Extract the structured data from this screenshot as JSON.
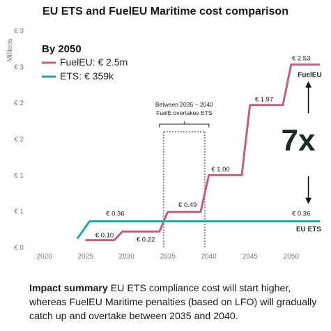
{
  "chart_data": {
    "type": "line",
    "title": "EU ETS and FuelEU Maritime cost comparison",
    "ylabel": "Millions",
    "ylim": [
      0,
      3
    ],
    "xlim": [
      2018,
      2054
    ],
    "x_ticks": [
      2020,
      2025,
      2030,
      2035,
      2040,
      2045,
      2050
    ],
    "y_ticks": [
      {
        "value": 0.0,
        "label": "€ 0"
      },
      {
        "value": 0.5,
        "label": "€ 1"
      },
      {
        "value": 1.0,
        "label": "€ 1"
      },
      {
        "value": 1.5,
        "label": "€ 2"
      },
      {
        "value": 2.0,
        "label": "€ 2"
      },
      {
        "value": 2.5,
        "label": "€ 3"
      },
      {
        "value": 3.0,
        "label": "€ 3"
      }
    ],
    "series": [
      {
        "name": "FuelEU",
        "color": "#c2607a",
        "x": [
          2025,
          2028.5,
          2029.5,
          2034,
          2035,
          2039,
          2040,
          2044,
          2045,
          2049,
          2050,
          2053.5
        ],
        "y": [
          0.1,
          0.1,
          0.22,
          0.22,
          0.49,
          0.49,
          1.0,
          1.0,
          1.97,
          1.97,
          2.53,
          2.53
        ]
      },
      {
        "name": "ETS",
        "color": "#1aab9b",
        "x": [
          2024,
          2025.5,
          2053.5
        ],
        "y": [
          0.12,
          0.36,
          0.36
        ]
      }
    ],
    "data_labels": [
      {
        "text": "€ 0.10",
        "x": 2026.2,
        "y": 0.14
      },
      {
        "text": "€ 0.22",
        "x": 2031.2,
        "y": 0.08
      },
      {
        "text": "€ 0.36",
        "x": 2027.5,
        "y": 0.44
      },
      {
        "text": "€ 0.49",
        "x": 2036.3,
        "y": 0.56
      },
      {
        "text": "€ 1.00",
        "x": 2040.3,
        "y": 1.05
      },
      {
        "text": "€ 1.97",
        "x": 2045.6,
        "y": 2.02
      },
      {
        "text": "€ 2.53",
        "x": 2050.1,
        "y": 2.59
      },
      {
        "text": "€ 0.36",
        "x": 2050.1,
        "y": 0.44
      }
    ],
    "series_end_labels": [
      {
        "text": "FuelEU",
        "x": 2050.8,
        "y": 2.36
      },
      {
        "text": "EU ETS",
        "x": 2050.6,
        "y": 0.22
      }
    ],
    "legend": {
      "placement": "top-left",
      "heading": "By 2050",
      "entries": [
        {
          "label": "FuelEU: € 2.5m",
          "color": "#c2607a"
        },
        {
          "label": "ETS: € 359k",
          "color": "#1aab9b"
        }
      ]
    },
    "annotations": {
      "period_box": {
        "x_start": 2034.5,
        "x_end": 2039.5,
        "y_top": 1.6
      },
      "period_text": [
        "Between 2035 ~ 2040",
        "FuelE overtakes ETS"
      ],
      "ratio_text": "7x",
      "ratio_arrow": {
        "x": 2052.1,
        "y_top": 2.3,
        "y_bottom": 0.6
      }
    },
    "grid": false
  },
  "summary": {
    "bold": "Impact summary",
    "text": " EU ETS compliance cost will start higher, whereas FuelEU Maritime penalties (based on LFO) will gradually catch up and overtake between 2035 and 2040."
  }
}
